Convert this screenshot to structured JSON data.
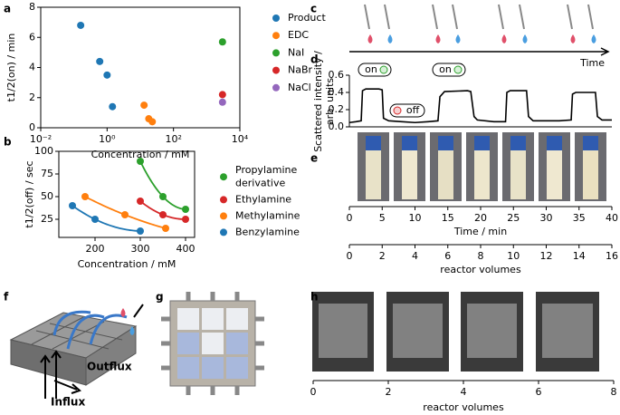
{
  "annotations": {
    "panels": [
      "a",
      "b",
      "c",
      "d",
      "e",
      "f",
      "g",
      "h"
    ],
    "on": [
      "on",
      "on"
    ],
    "off": "off",
    "time_arrow": "Time",
    "outflux": "Outflux",
    "influx": "Influx"
  },
  "chart_data": [
    {
      "type": "scatter",
      "xlabel": "Concentration / mM",
      "ylabel": "t1/2(on) / min",
      "log_x": true,
      "xlim": [
        0.01,
        10000
      ],
      "xticks": [
        {
          "value": 0.01,
          "label": "10⁻²"
        },
        {
          "value": 1,
          "label": "10⁰"
        },
        {
          "value": 100,
          "label": "10²"
        },
        {
          "value": 10000,
          "label": "10⁴"
        }
      ],
      "ylim": [
        0,
        8
      ],
      "yticks": [
        0,
        2,
        4,
        6,
        8
      ],
      "series": [
        {
          "name": "Product",
          "color": "#1f77b4",
          "x": [
            0.16,
            0.6,
            1,
            1.45
          ],
          "values": [
            6.8,
            4.4,
            3.5,
            1.4
          ]
        },
        {
          "name": "EDC",
          "color": "#ff7f0e",
          "x": [
            13,
            18,
            23
          ],
          "values": [
            1.5,
            0.6,
            0.4
          ]
        },
        {
          "name": "NaI",
          "color": "#2ca02c",
          "x": [
            3000
          ],
          "values": [
            5.7
          ]
        },
        {
          "name": "NaBr",
          "color": "#d62728",
          "x": [
            3000
          ],
          "values": [
            2.2
          ]
        },
        {
          "name": "NaCl",
          "color": "#9467bd",
          "x": [
            3000
          ],
          "values": [
            1.7
          ]
        }
      ]
    },
    {
      "type": "line",
      "xlabel": "Concentration / mM",
      "ylabel": "t1/2(off) / sec",
      "xlim": [
        120,
        420
      ],
      "xticks": [
        200,
        300,
        400
      ],
      "ylim": [
        5,
        100
      ],
      "yticks": [
        25,
        50,
        75,
        100
      ],
      "series": [
        {
          "name": "Propylamine derivative",
          "color": "#2ca02c",
          "x": [
            300,
            350,
            400
          ],
          "values": [
            89,
            50,
            36
          ]
        },
        {
          "name": "Ethylamine",
          "color": "#d62728",
          "x": [
            300,
            350,
            400
          ],
          "values": [
            45,
            30,
            25
          ]
        },
        {
          "name": "Methylamine",
          "color": "#ff7f0e",
          "x": [
            178,
            266,
            356
          ],
          "values": [
            50,
            30,
            15
          ]
        },
        {
          "name": "Benzylamine",
          "color": "#1f77b4",
          "x": [
            150,
            200,
            300
          ],
          "values": [
            40,
            25,
            12
          ]
        }
      ]
    },
    {
      "type": "line",
      "xlabel": "Time / min",
      "ylabel": [
        "Scattered intensity /",
        "arb. units"
      ],
      "xlim": [
        0,
        40
      ],
      "xticks": [
        0,
        5,
        10,
        15,
        20,
        25,
        30,
        35,
        40
      ],
      "ylim": [
        0,
        0.6
      ],
      "yticks": [
        {
          "value": 0,
          "label": "0.0"
        },
        {
          "value": 0.2,
          "label": "0.2"
        },
        {
          "value": 0.4,
          "label": "0.4"
        },
        {
          "value": 0.6,
          "label": "0.6"
        }
      ],
      "x2label": "reactor volumes",
      "x2lim": [
        0,
        16
      ],
      "x2ticks": [
        0,
        2,
        4,
        6,
        8,
        10,
        12,
        14,
        16
      ],
      "series": [
        {
          "name": "Scattered intensity",
          "color": "#000000",
          "x": [
            0,
            1,
            1.8,
            2,
            2.5,
            4.5,
            5,
            5.2,
            6,
            8,
            10,
            12,
            13.5,
            13.8,
            14.5,
            18,
            18.5,
            19,
            19.5,
            22,
            23.8,
            24,
            24.5,
            27,
            27.3,
            28,
            30,
            32,
            33.8,
            34,
            34.5,
            37.5,
            37.8,
            38.5,
            40
          ],
          "values": [
            0.05,
            0.06,
            0.07,
            0.42,
            0.44,
            0.44,
            0.43,
            0.1,
            0.07,
            0.06,
            0.05,
            0.06,
            0.07,
            0.35,
            0.41,
            0.42,
            0.41,
            0.12,
            0.08,
            0.06,
            0.06,
            0.4,
            0.42,
            0.42,
            0.12,
            0.07,
            0.07,
            0.07,
            0.08,
            0.38,
            0.4,
            0.4,
            0.12,
            0.08,
            0.08
          ]
        }
      ]
    },
    {
      "type": "image",
      "xlabel": "reactor volumes",
      "xlim": [
        0,
        8
      ],
      "xticks": [
        0,
        2,
        4,
        6,
        8
      ]
    }
  ]
}
